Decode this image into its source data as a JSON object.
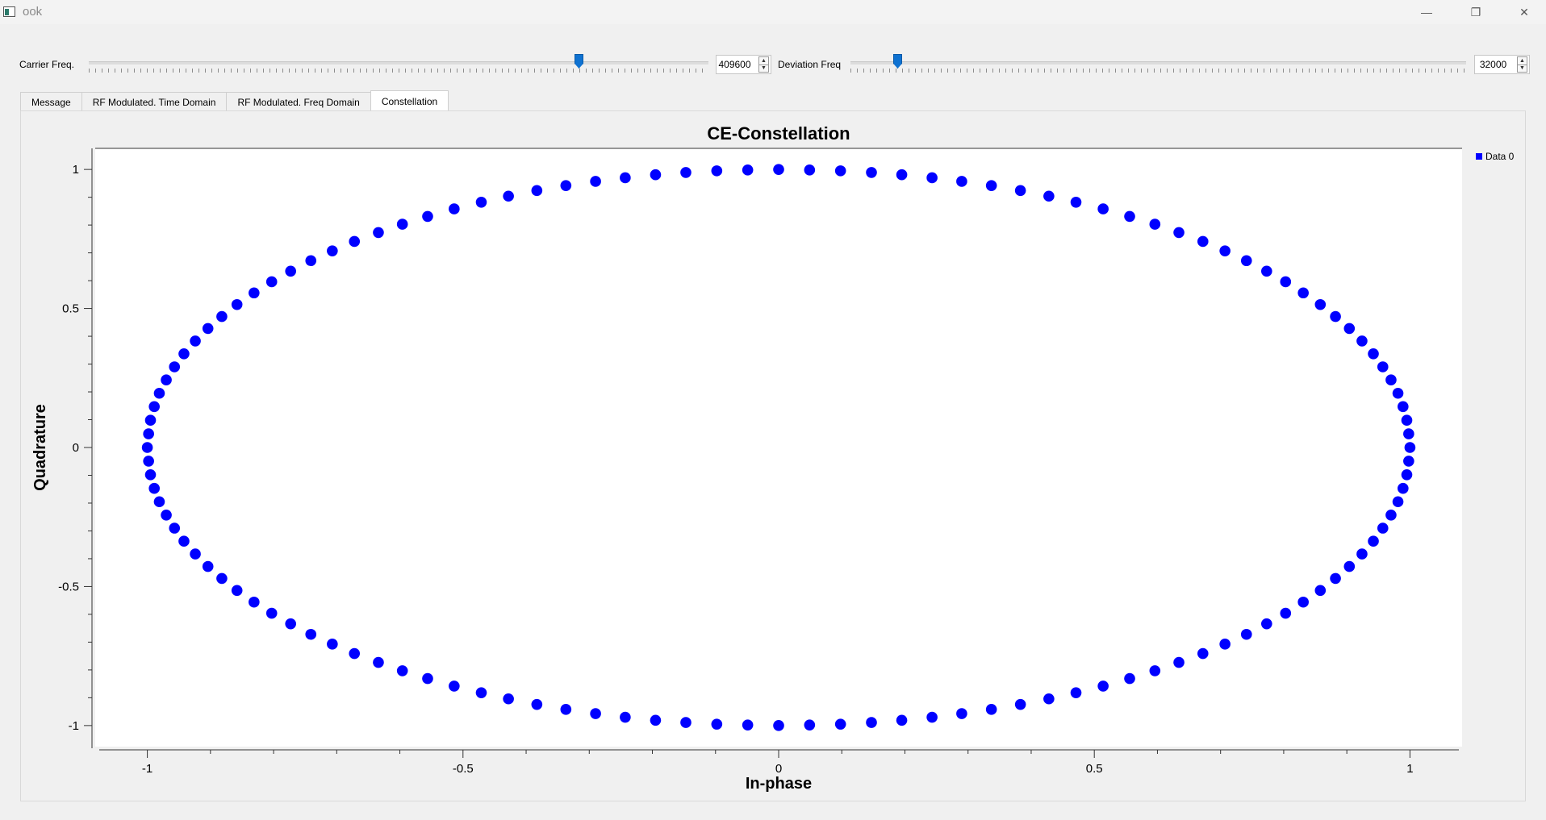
{
  "window": {
    "title": "ook",
    "minimize_glyph": "—",
    "maximize_glyph": "❐",
    "close_glyph": "✕"
  },
  "controls": {
    "carrier": {
      "label": "Carrier Freq.",
      "value": "409600",
      "slider_fraction": 0.795
    },
    "deviation": {
      "label": "Deviation Freq",
      "value": "32000",
      "slider_fraction": 0.07
    },
    "spin_up_glyph": "▲",
    "spin_down_glyph": "▼"
  },
  "tabs": [
    {
      "label": "Message",
      "active": false
    },
    {
      "label": "RF Modulated. Time Domain",
      "active": false
    },
    {
      "label": "RF Modulated. Freq Domain",
      "active": false
    },
    {
      "label": "Constellation",
      "active": true
    }
  ],
  "chart_data": {
    "type": "scatter",
    "title": "CE-Constellation",
    "xlabel": "In-phase",
    "ylabel": "Quadrature",
    "xlim": [
      -1.08,
      1.08
    ],
    "ylim": [
      -1.07,
      1.07
    ],
    "x_ticks": [
      -1,
      -0.5,
      0,
      0.5,
      1
    ],
    "x_tick_labels": [
      "-1",
      "-0.5",
      "0",
      "0.5",
      "1"
    ],
    "y_ticks": [
      -1,
      -0.5,
      0,
      0.5,
      1
    ],
    "y_tick_labels": [
      "-1",
      "-0.5",
      "0",
      "0.5",
      "1"
    ],
    "legend": {
      "placement": "top-right",
      "entries": [
        "Data 0"
      ]
    },
    "grid": false,
    "series": [
      {
        "name": "Data 0",
        "color": "#0000ff",
        "x": [
          1.0,
          0.998,
          0.995,
          0.989,
          0.981,
          0.97,
          0.957,
          0.942,
          0.924,
          0.904,
          0.882,
          0.858,
          0.831,
          0.803,
          0.773,
          0.741,
          0.707,
          0.672,
          0.634,
          0.596,
          0.556,
          0.514,
          0.471,
          0.428,
          0.383,
          0.337,
          0.29,
          0.243,
          0.195,
          0.147,
          0.098,
          0.049,
          0.0,
          -0.049,
          -0.098,
          -0.147,
          -0.195,
          -0.243,
          -0.29,
          -0.337,
          -0.383,
          -0.428,
          -0.471,
          -0.514,
          -0.556,
          -0.596,
          -0.634,
          -0.672,
          -0.707,
          -0.741,
          -0.773,
          -0.803,
          -0.831,
          -0.858,
          -0.882,
          -0.904,
          -0.924,
          -0.942,
          -0.957,
          -0.97,
          -0.981,
          -0.989,
          -0.995,
          -0.998,
          -1.0,
          -0.998,
          -0.995,
          -0.989,
          -0.981,
          -0.97,
          -0.957,
          -0.942,
          -0.924,
          -0.904,
          -0.882,
          -0.858,
          -0.831,
          -0.803,
          -0.773,
          -0.741,
          -0.707,
          -0.672,
          -0.634,
          -0.596,
          -0.556,
          -0.514,
          -0.471,
          -0.428,
          -0.383,
          -0.337,
          -0.29,
          -0.243,
          -0.195,
          -0.147,
          -0.098,
          -0.049,
          0.0,
          0.049,
          0.098,
          0.147,
          0.195,
          0.243,
          0.29,
          0.337,
          0.383,
          0.428,
          0.471,
          0.514,
          0.556,
          0.596,
          0.634,
          0.672,
          0.707,
          0.741,
          0.773,
          0.803,
          0.831,
          0.858,
          0.882,
          0.904,
          0.924,
          0.942,
          0.957,
          0.97,
          0.981,
          0.989,
          0.995,
          0.998
        ],
        "y": [
          0.0,
          0.049,
          0.098,
          0.147,
          0.195,
          0.243,
          0.29,
          0.337,
          0.383,
          0.428,
          0.471,
          0.514,
          0.556,
          0.596,
          0.634,
          0.672,
          0.707,
          0.741,
          0.773,
          0.803,
          0.831,
          0.858,
          0.882,
          0.904,
          0.924,
          0.942,
          0.957,
          0.97,
          0.981,
          0.989,
          0.995,
          0.998,
          1.0,
          0.998,
          0.995,
          0.989,
          0.981,
          0.97,
          0.957,
          0.942,
          0.924,
          0.904,
          0.882,
          0.858,
          0.831,
          0.803,
          0.773,
          0.741,
          0.707,
          0.672,
          0.634,
          0.596,
          0.556,
          0.514,
          0.471,
          0.428,
          0.383,
          0.337,
          0.29,
          0.243,
          0.195,
          0.147,
          0.098,
          0.049,
          0.0,
          -0.049,
          -0.098,
          -0.147,
          -0.195,
          -0.243,
          -0.29,
          -0.337,
          -0.383,
          -0.428,
          -0.471,
          -0.514,
          -0.556,
          -0.596,
          -0.634,
          -0.672,
          -0.707,
          -0.741,
          -0.773,
          -0.803,
          -0.831,
          -0.858,
          -0.882,
          -0.904,
          -0.924,
          -0.942,
          -0.957,
          -0.97,
          -0.981,
          -0.989,
          -0.995,
          -0.998,
          -1.0,
          -0.998,
          -0.995,
          -0.989,
          -0.981,
          -0.97,
          -0.957,
          -0.942,
          -0.924,
          -0.904,
          -0.882,
          -0.858,
          -0.831,
          -0.803,
          -0.773,
          -0.741,
          -0.707,
          -0.672,
          -0.634,
          -0.596,
          -0.556,
          -0.514,
          -0.471,
          -0.428,
          -0.383,
          -0.337,
          -0.29,
          -0.243,
          -0.195,
          -0.147,
          -0.098,
          -0.049
        ]
      }
    ]
  }
}
